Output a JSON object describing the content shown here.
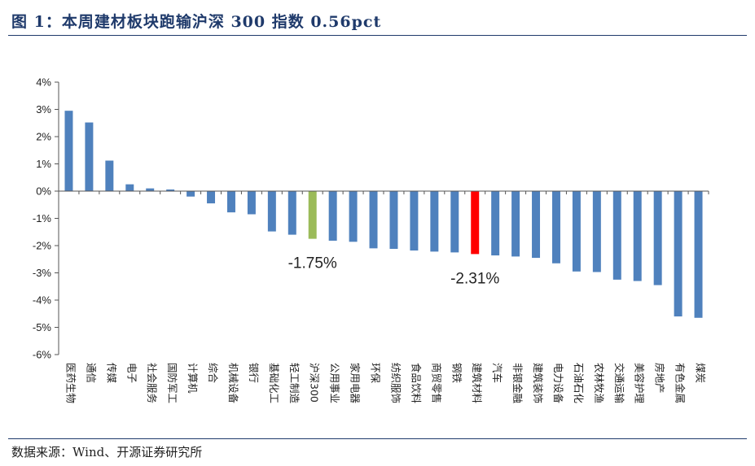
{
  "header": {
    "title": "图 1：本周建材板块跑输沪深 300 指数 0.56pct"
  },
  "footer": {
    "source": "数据来源：Wind、开源证券研究所"
  },
  "colors": {
    "default": "#4f81bd",
    "hs300": "#9bbb59",
    "building": "#ff0000",
    "title": "#1f3a6b"
  },
  "chart_data": {
    "type": "bar",
    "categories": [
      "医药生物",
      "通信",
      "传媒",
      "电子",
      "社会服务",
      "国防军工",
      "计算机",
      "综合",
      "机械设备",
      "银行",
      "基础化工",
      "轻工制造",
      "沪深300",
      "公用事业",
      "家用电器",
      "环保",
      "纺织服饰",
      "食品饮料",
      "商贸零售",
      "钢铁",
      "建筑材料",
      "汽车",
      "非银金融",
      "建筑装饰",
      "电力设备",
      "石油石化",
      "农林牧渔",
      "交通运输",
      "美容护理",
      "房地产",
      "有色金属",
      "煤炭"
    ],
    "values": [
      2.95,
      2.52,
      1.12,
      0.25,
      0.1,
      0.06,
      -0.2,
      -0.45,
      -0.78,
      -0.85,
      -1.48,
      -1.6,
      -1.75,
      -1.82,
      -1.86,
      -2.1,
      -2.12,
      -2.18,
      -2.22,
      -2.25,
      -2.31,
      -2.36,
      -2.4,
      -2.45,
      -2.65,
      -2.95,
      -2.97,
      -3.25,
      -3.3,
      -3.45,
      -4.6,
      -4.65
    ],
    "highlight": {
      "沪深300": "hs300",
      "建筑材料": "building"
    },
    "ylim": [
      -6,
      4
    ],
    "yticks": [
      "4%",
      "3%",
      "2%",
      "1%",
      "0%",
      "-1%",
      "-2%",
      "-3%",
      "-4%",
      "-5%",
      "-6%"
    ],
    "annotations": [
      {
        "text": "-1.75%",
        "category": "沪深300"
      },
      {
        "text": "-2.31%",
        "category": "建筑材料"
      }
    ]
  }
}
